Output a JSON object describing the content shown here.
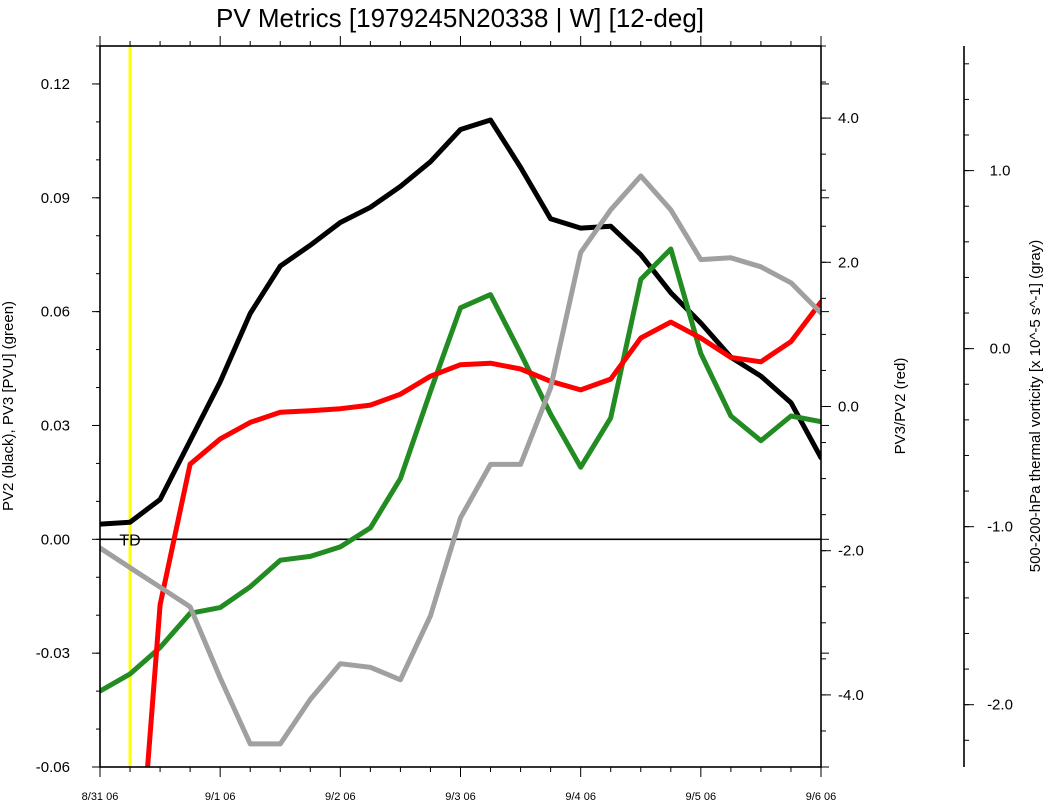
{
  "chart_data": {
    "type": "line",
    "title": "PV Metrics [1979245N20338 | W] [12-deg]",
    "annotation": "TD",
    "x_tick_labels": [
      "8/31 06",
      "9/1 06",
      "9/2 06",
      "9/3 06",
      "9/4 06",
      "9/5 06",
      "9/6 06"
    ],
    "x_range_hours": [
      0,
      144
    ],
    "marker_hour": 6,
    "axes": {
      "left": {
        "label": "PV2 (black), PV3 [PVU] (green)",
        "range": [
          -0.06,
          0.13
        ],
        "ticks": [
          "0.12",
          "0.09",
          "0.06",
          "0.03",
          "0.00",
          "-0.03",
          "-0.06"
        ],
        "tick_values": [
          0.12,
          0.09,
          0.06,
          0.03,
          0.0,
          -0.03,
          -0.06
        ]
      },
      "right": {
        "label": "PV3/PV2 (red)",
        "range": [
          -5.0,
          5.0
        ],
        "ticks": [
          "4.0",
          "2.0",
          "0.0",
          "-2.0",
          "-4.0"
        ],
        "tick_values": [
          4.0,
          2.0,
          0.0,
          -2.0,
          -4.0
        ]
      },
      "far_right": {
        "label": "500-200-hPa thermal vorticity [x 10^-5 s^-1] (gray)",
        "range": [
          -2.35,
          1.7
        ],
        "ticks": [
          "1.0",
          "0.0",
          "-1.0",
          "-2.0"
        ],
        "tick_values": [
          1.0,
          0.0,
          -1.0,
          -2.0
        ]
      }
    },
    "x_hours": [
      0,
      6,
      12,
      18,
      24,
      30,
      36,
      42,
      48,
      54,
      60,
      66,
      72,
      78,
      84,
      90,
      96,
      102,
      108,
      114,
      120,
      126,
      132,
      138,
      144
    ],
    "series": [
      {
        "color": "#000000",
        "axis": "left",
        "values": [
          0.004,
          0.0045,
          0.0105,
          0.026,
          0.0415,
          0.0595,
          0.072,
          0.0775,
          0.0835,
          0.0875,
          0.093,
          0.0995,
          0.108,
          0.1105,
          0.098,
          0.0845,
          0.082,
          0.0825,
          0.075,
          0.065,
          0.057,
          0.048,
          0.043,
          0.036,
          0.0215
        ]
      },
      {
        "color": "#228B22",
        "axis": "left",
        "values": [
          -0.04,
          -0.0355,
          -0.0285,
          -0.0195,
          -0.018,
          -0.0125,
          -0.0055,
          -0.0045,
          -0.002,
          0.003,
          0.016,
          0.039,
          0.061,
          0.0645,
          0.049,
          0.033,
          0.019,
          0.032,
          0.0685,
          0.0765,
          0.049,
          0.0325,
          0.026,
          0.0325,
          0.031
        ]
      },
      {
        "color": "#FF0000",
        "axis": "right",
        "x_hours": [
          9.5,
          12,
          18,
          24,
          30,
          36,
          42,
          48,
          54,
          60,
          66,
          72,
          78,
          84,
          90,
          96,
          102,
          108,
          114,
          120,
          126,
          132,
          138,
          144
        ],
        "values": [
          -5.0,
          -2.75,
          -0.8,
          -0.45,
          -0.22,
          -0.08,
          -0.06,
          -0.03,
          0.02,
          0.17,
          0.42,
          0.58,
          0.6,
          0.52,
          0.35,
          0.23,
          0.38,
          0.95,
          1.17,
          0.95,
          0.68,
          0.62,
          0.9,
          1.45
        ]
      },
      {
        "color": "#A0A0A0",
        "axis": "far_right",
        "values": [
          -1.12,
          -1.23,
          -1.34,
          -1.45,
          -1.85,
          -2.22,
          -2.22,
          -1.97,
          -1.77,
          -1.79,
          -1.86,
          -1.5,
          -0.95,
          -0.65,
          -0.65,
          -0.22,
          0.54,
          0.78,
          0.97,
          0.78,
          0.5,
          0.51,
          0.46,
          0.37,
          0.2
        ]
      }
    ]
  }
}
